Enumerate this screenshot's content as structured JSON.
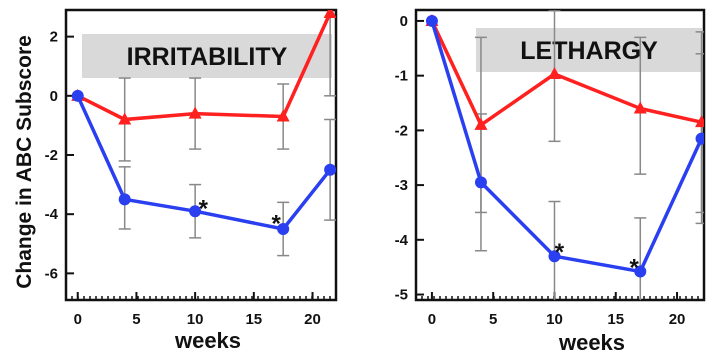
{
  "ylabel": "Change in ABC Subscore",
  "colors": {
    "series_red": "#ff2020",
    "series_blue": "#2a3ff0",
    "error_bar": "#888888",
    "title_box": "#d9d9d9",
    "axis": "#111111"
  },
  "chart_data": [
    {
      "type": "line",
      "title": "IRRITABILITY",
      "xlabel": "weeks",
      "xlim": [
        -1,
        22
      ],
      "ylim": [
        -6.9,
        2.9
      ],
      "xticks": [
        0,
        5,
        10,
        15,
        20
      ],
      "yticks": [
        2,
        0,
        -2,
        -4,
        -6
      ],
      "series": [
        {
          "color": "#ff2020",
          "marker": "triangle",
          "points": [
            {
              "x": 0,
              "y": 0
            },
            {
              "x": 4,
              "y": -0.8,
              "err_low": -2.2,
              "err_high": 0.6
            },
            {
              "x": 10,
              "y": -0.6,
              "err_low": -1.8,
              "err_high": 0.6
            },
            {
              "x": 17.5,
              "y": -0.7,
              "err_low": -1.8,
              "err_high": 0.4
            },
            {
              "x": 21.5,
              "y": 2.8,
              "err_low": 0.0,
              "err_high": 6.0
            }
          ]
        },
        {
          "color": "#2a3ff0",
          "marker": "circle",
          "points": [
            {
              "x": 0,
              "y": 0
            },
            {
              "x": 4,
              "y": -3.5,
              "err_low": -4.5,
              "err_high": -2.4
            },
            {
              "x": 10,
              "y": -3.9,
              "err_low": -4.8,
              "err_high": -3.0
            },
            {
              "x": 17.5,
              "y": -4.5,
              "err_low": -5.4,
              "err_high": -3.6
            },
            {
              "x": 21.5,
              "y": -2.5,
              "err_low": -4.2,
              "err_high": -0.8
            }
          ]
        }
      ],
      "annotations": [
        {
          "text": "*",
          "x": 10.7,
          "y": -3.95
        },
        {
          "text": "*",
          "x": 16.9,
          "y": -4.45
        }
      ]
    },
    {
      "type": "line",
      "title": "LETHARGY",
      "xlabel": "weeks",
      "xlim": [
        -1.3,
        22.2
      ],
      "ylim": [
        -5.1,
        0.2
      ],
      "xticks": [
        0,
        5,
        10,
        15,
        20
      ],
      "yticks": [
        0,
        -1,
        -2,
        -3,
        -4,
        -5
      ],
      "series": [
        {
          "color": "#ff2020",
          "marker": "triangle",
          "points": [
            {
              "x": 0,
              "y": 0
            },
            {
              "x": 4,
              "y": -1.9,
              "err_low": -3.5,
              "err_high": -0.3
            },
            {
              "x": 10,
              "y": -0.97,
              "err_low": -2.2,
              "err_high": 0.2
            },
            {
              "x": 17,
              "y": -1.6,
              "err_low": -2.8,
              "err_high": -0.3
            },
            {
              "x": 22,
              "y": -1.85,
              "err_low": -3.5,
              "err_high": -0.2
            }
          ]
        },
        {
          "color": "#2a3ff0",
          "marker": "circle",
          "points": [
            {
              "x": 0,
              "y": 0
            },
            {
              "x": 4,
              "y": -2.95,
              "err_low": -4.2,
              "err_high": -1.7
            },
            {
              "x": 10,
              "y": -4.3,
              "err_low": -5.2,
              "err_high": -3.3
            },
            {
              "x": 17,
              "y": -4.58,
              "err_low": -5.2,
              "err_high": -3.6
            },
            {
              "x": 22,
              "y": -2.15,
              "err_low": -3.7,
              "err_high": -0.6
            }
          ]
        }
      ],
      "annotations": [
        {
          "text": "*",
          "x": 10.4,
          "y": -4.3
        },
        {
          "text": "*",
          "x": 16.5,
          "y": -4.58
        }
      ]
    }
  ]
}
